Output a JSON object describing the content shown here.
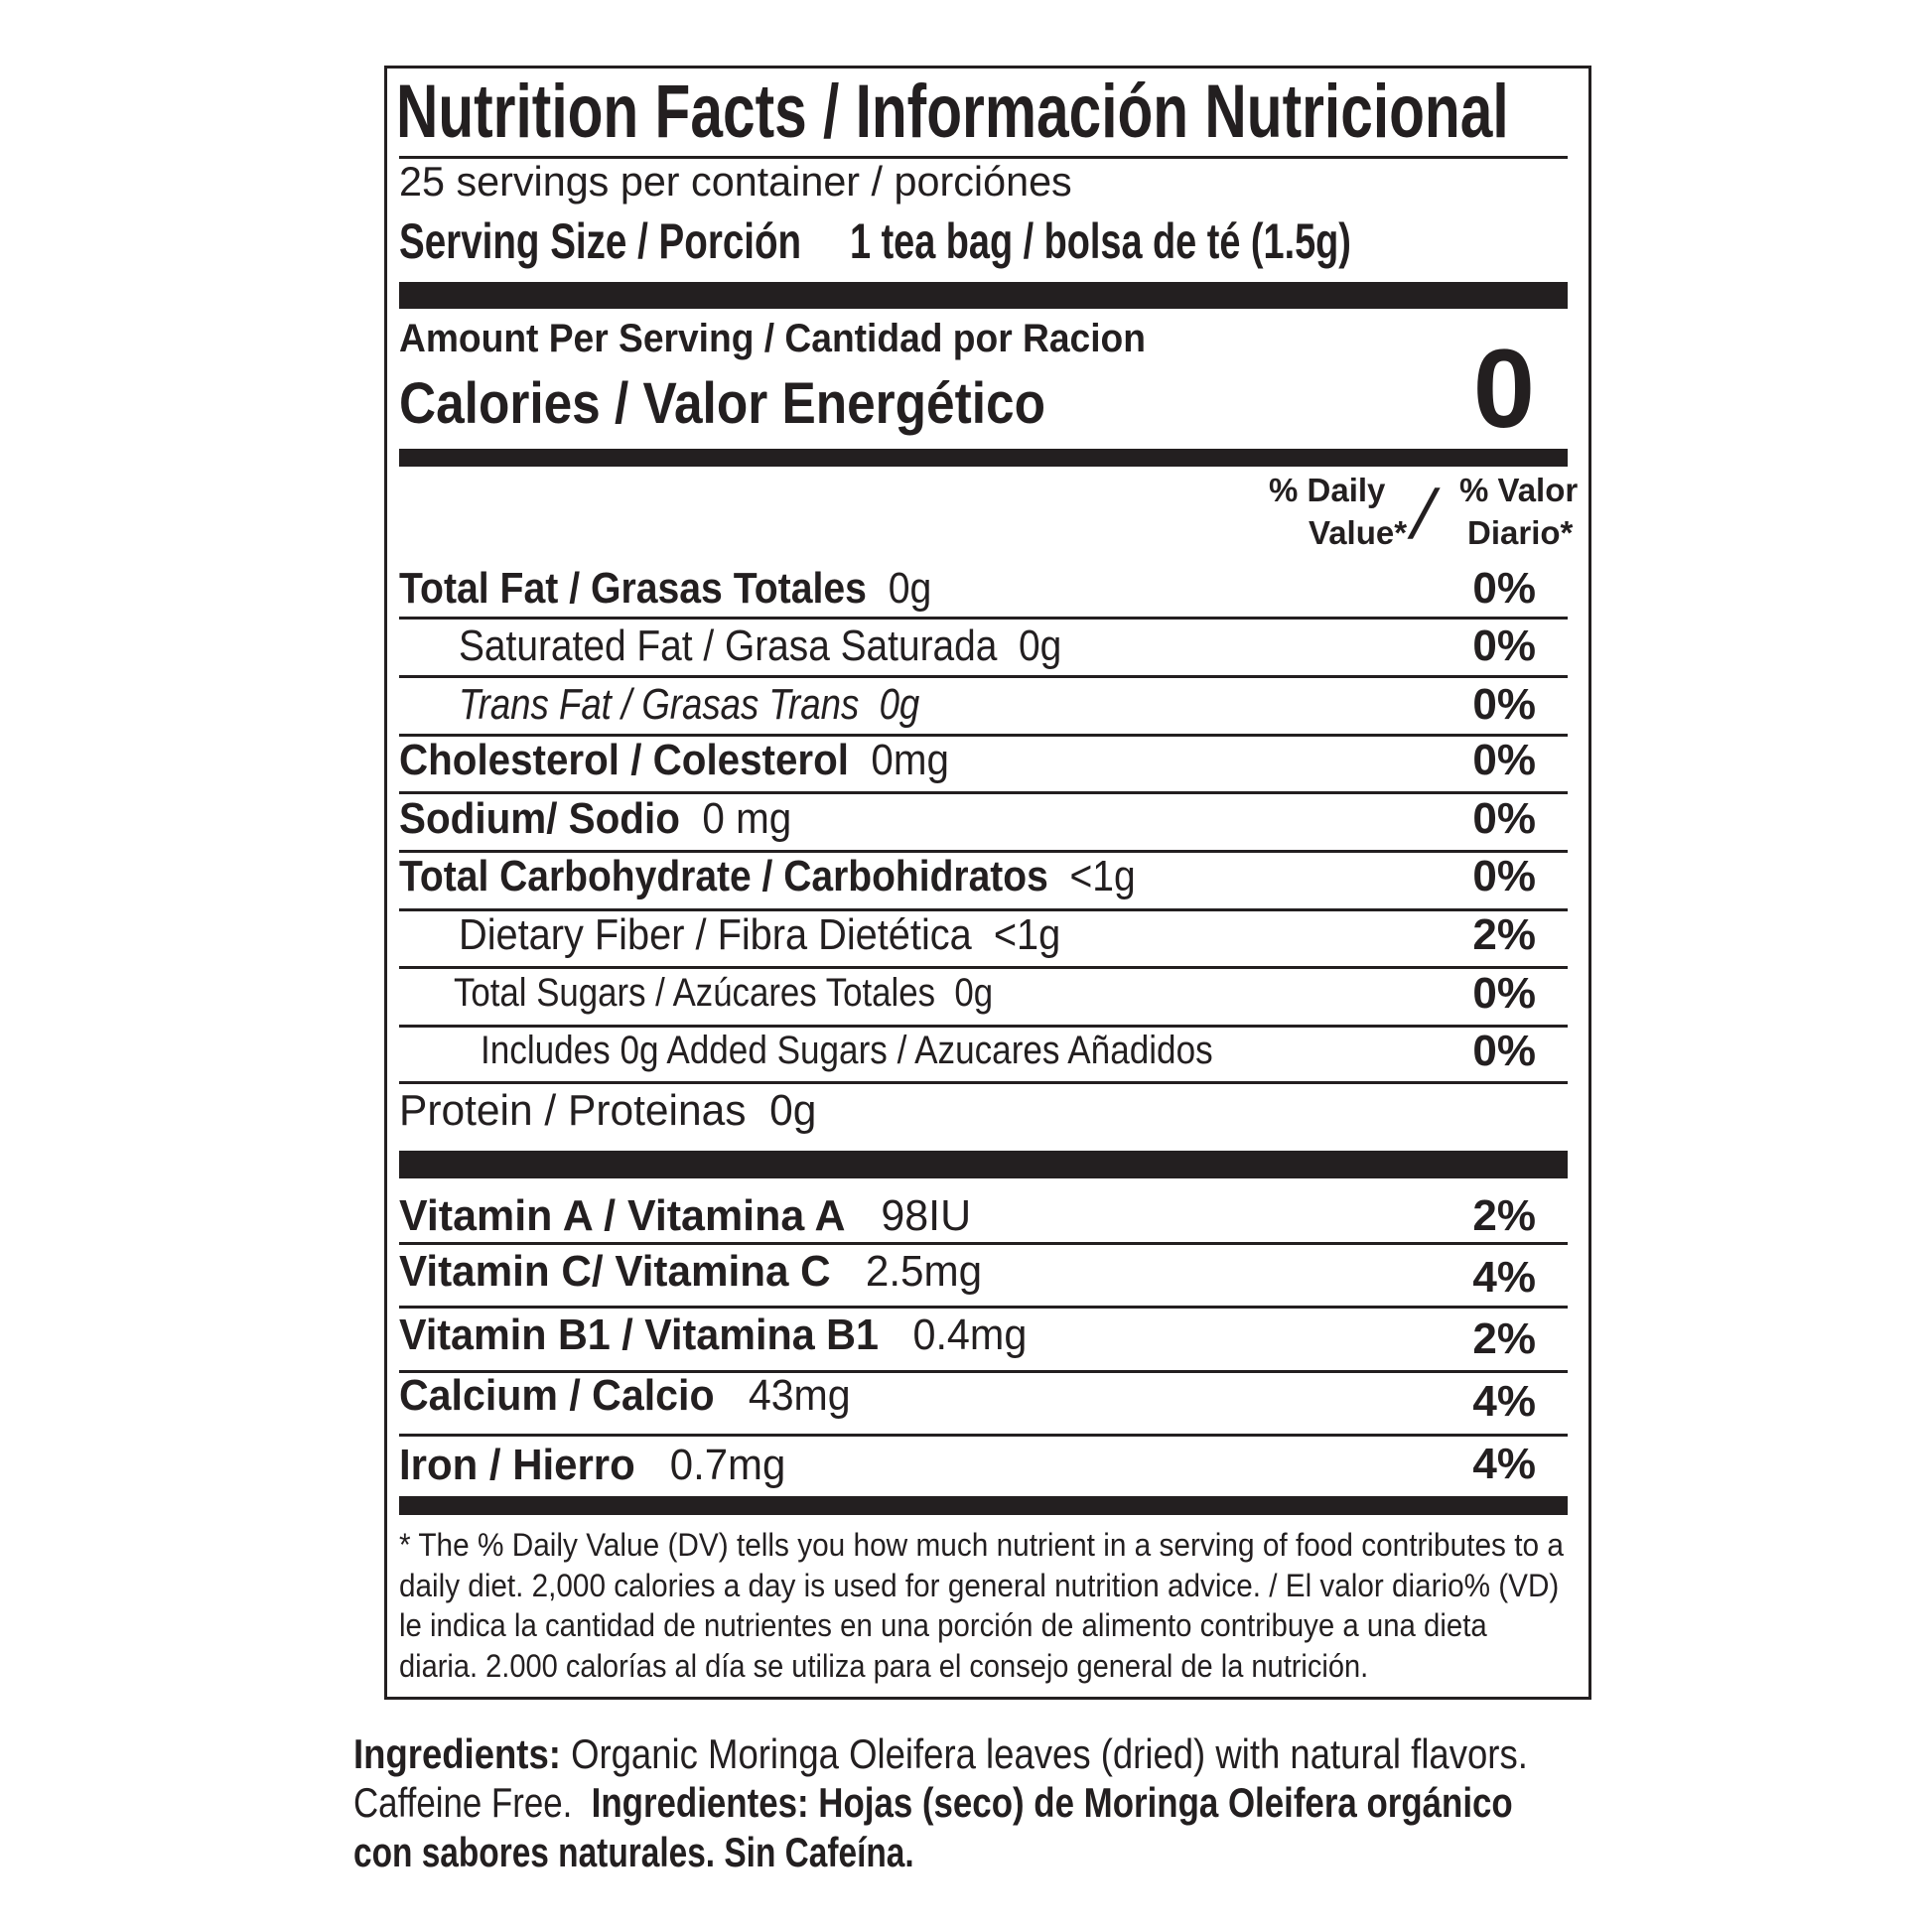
{
  "label": {
    "title": "Nutrition Facts / Información Nutricional",
    "servings": "25 servings per container / porciónes",
    "serving_size_label": "Serving Size / Porción",
    "serving_size_value": "1 tea bag / bolsa de té (1.5g)",
    "amount_per_serving": "Amount Per Serving / Cantidad por Racion",
    "calories_label": "Calories / Valor Energético",
    "calories_value": "0",
    "dv_header": {
      "line1_en": "% Daily",
      "line2_en": "Value*",
      "slash": "/",
      "line1_es": "% Valor",
      "line2_es": "Diario*"
    },
    "nutrients": [
      {
        "name": "Total Fat / Grasas Totales",
        "amount": "0g",
        "dv": "0%"
      },
      {
        "name": "Saturated Fat / Grasa Saturada",
        "amount": "0g",
        "dv": "0%"
      },
      {
        "name": "Trans Fat / Grasas Trans",
        "amount": "0g",
        "dv": "0%"
      },
      {
        "name": "Cholesterol / Colesterol",
        "amount": "0mg",
        "dv": "0%"
      },
      {
        "name": "Sodium/ Sodio",
        "amount": "0 mg",
        "dv": "0%"
      },
      {
        "name": "Total Carbohydrate / Carbohidratos",
        "amount": "<1g",
        "dv": "0%"
      },
      {
        "name": "Dietary Fiber / Fibra Dietética",
        "amount": "<1g",
        "dv": "2%"
      },
      {
        "name": "Total Sugars / Azúcares Totales",
        "amount": "0g",
        "dv": "0%"
      },
      {
        "name": "Includes 0g Added Sugars / Azucares Añadidos",
        "amount": "",
        "dv": "0%"
      },
      {
        "name": "Protein / Proteinas",
        "amount": "0g",
        "dv": ""
      }
    ],
    "vitamins": [
      {
        "name": "Vitamin A / Vitamina A",
        "amount": "98IU",
        "dv": "2%"
      },
      {
        "name": "Vitamin C/ Vitamina C",
        "amount": "2.5mg",
        "dv": "4%"
      },
      {
        "name": "Vitamin B1 / Vitamina B1",
        "amount": "0.4mg",
        "dv": "2%"
      },
      {
        "name": "Calcium / Calcio",
        "amount": "43mg",
        "dv": "4%"
      },
      {
        "name": "Iron / Hierro",
        "amount": "0.7mg",
        "dv": "4%"
      }
    ],
    "footnote": [
      "* The % Daily Value (DV) tells you how much nutrient in a serving of food contributes to a",
      "daily diet. 2,000 calories a day is used for general nutrition advice. / El valor diario% (VD)",
      "le indica la cantidad de nutrientes en una porción de alimento contribuye a una dieta",
      "diaria. 2.000 calorías al día se utiliza para el consejo general de la nutrición."
    ]
  },
  "ingredients": {
    "en_label": "Ingredients:",
    "en_text": "Organic Moringa Oleifera leaves (dried) with natural flavors.",
    "caffeine": "Caffeine Free.",
    "es_label": "Ingredientes:",
    "es_text_1": "Hojas (seco) de Moringa Oleifera orgánico",
    "es_text_2": "con sabores naturales. Sin Cafeína."
  }
}
